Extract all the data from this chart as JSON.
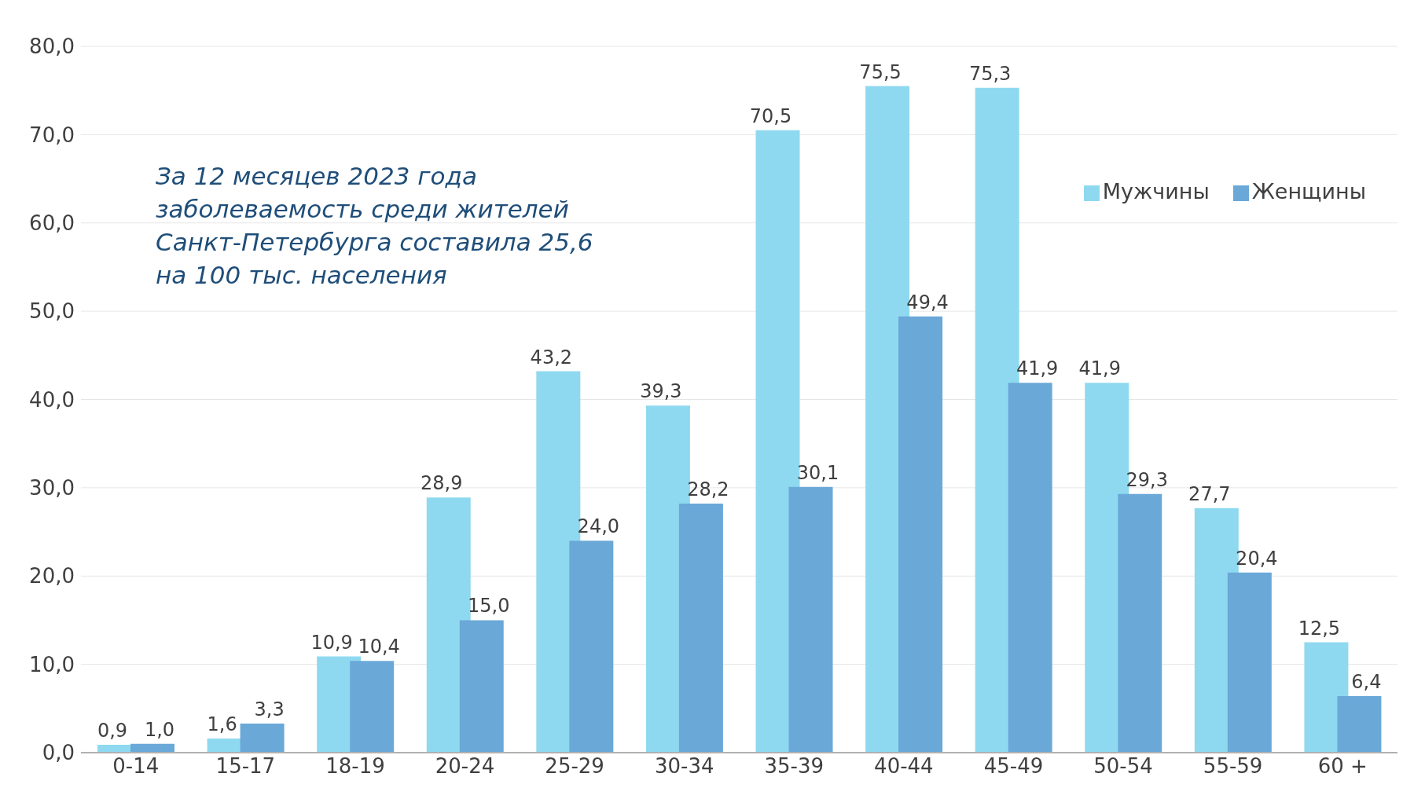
{
  "chart_data": {
    "type": "bar",
    "categories": [
      "0-14",
      "15-17",
      "18-19",
      "20-24",
      "25-29",
      "30-34",
      "35-39",
      "40-44",
      "45-49",
      "50-54",
      "55-59",
      "60 +"
    ],
    "series": [
      {
        "name": "Мужчины",
        "color": "#8fd9f0",
        "values": [
          0.9,
          1.6,
          10.9,
          28.9,
          43.2,
          39.3,
          70.5,
          75.5,
          75.3,
          41.9,
          27.7,
          12.5
        ],
        "value_labels": [
          "0,9",
          "1,6",
          "10,9",
          "28,9",
          "43,2",
          "39,3",
          "70,5",
          "75,5",
          "75,3",
          "41,9",
          "27,7",
          "12,5"
        ]
      },
      {
        "name": "Женщины",
        "color": "#6aa8d8",
        "values": [
          1.0,
          3.3,
          10.4,
          15.0,
          24.0,
          28.2,
          30.1,
          49.4,
          41.9,
          29.3,
          20.4,
          6.4
        ],
        "value_labels": [
          "1,0",
          "3,3",
          "10,4",
          "15,0",
          "24,0",
          "28,2",
          "30,1",
          "49,4",
          "41,9",
          "29,3",
          "20,4",
          "6,4"
        ]
      }
    ],
    "ylim": [
      0,
      80
    ],
    "yticks": [
      {
        "value": 0,
        "label": "0,0"
      },
      {
        "value": 10,
        "label": "10,0"
      },
      {
        "value": 20,
        "label": "20,0"
      },
      {
        "value": 30,
        "label": "30,0"
      },
      {
        "value": 40,
        "label": "40,0"
      },
      {
        "value": 50,
        "label": "50,0"
      },
      {
        "value": 60,
        "label": "60,0"
      },
      {
        "value": 70,
        "label": "70,0"
      },
      {
        "value": 80,
        "label": "80,0"
      }
    ],
    "grid": "y",
    "legend": "top right",
    "annotations": [
      "За 12 месяцев 2023 года заболеваемость среди жителей Санкт-Петербурга составила 25,6 на 100 тыс. населения"
    ]
  }
}
